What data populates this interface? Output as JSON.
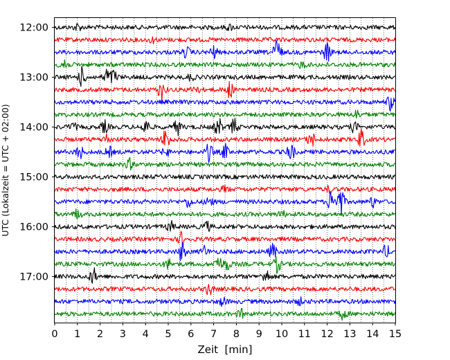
{
  "chart_data": {
    "type": "line",
    "title": "",
    "xlabel": "Zeit  [min]",
    "ylabel": "UTC (Lokalzeit = UTC + 02:00)",
    "xlim": [
      0,
      15
    ],
    "x_ticks": [
      0,
      1,
      2,
      3,
      4,
      5,
      6,
      7,
      8,
      9,
      10,
      11,
      12,
      13,
      14,
      15
    ],
    "y_tick_labels": [
      "12:00",
      "13:00",
      "14:00",
      "15:00",
      "16:00",
      "17:00"
    ],
    "row_interval_min": 15,
    "rows_start": "12:00",
    "grid": {
      "vertical_dotted": true,
      "horizontal": false
    },
    "trace_colors": [
      "#000000",
      "#ff0000",
      "#0000ff",
      "#008000"
    ],
    "rows": [
      {
        "time": "12:00",
        "color": "#000000",
        "events": [
          {
            "t": 1.0,
            "amp": 0.35
          },
          {
            "t": 7.7,
            "amp": 0.25
          }
        ]
      },
      {
        "time": "12:15",
        "color": "#ff0000",
        "events": [
          {
            "t": 4.3,
            "amp": 0.25
          }
        ]
      },
      {
        "time": "12:30",
        "color": "#0000ff",
        "events": [
          {
            "t": 5.8,
            "amp": 0.5
          },
          {
            "t": 7.0,
            "amp": 0.6
          },
          {
            "t": 9.8,
            "amp": 1.6
          },
          {
            "t": 12.0,
            "amp": 1.0
          }
        ]
      },
      {
        "time": "12:45",
        "color": "#008000",
        "events": [
          {
            "t": 0.4,
            "amp": 0.9
          },
          {
            "t": 10.9,
            "amp": 0.3
          }
        ]
      },
      {
        "time": "13:00",
        "color": "#000000",
        "events": [
          {
            "t": 1.2,
            "amp": 0.9
          },
          {
            "t": 2.3,
            "amp": 0.8
          },
          {
            "t": 2.6,
            "amp": 0.7
          },
          {
            "t": 6.0,
            "amp": 0.3
          }
        ]
      },
      {
        "time": "13:15",
        "color": "#ff0000",
        "events": [
          {
            "t": 4.7,
            "amp": 1.0
          },
          {
            "t": 6.2,
            "amp": 0.5
          },
          {
            "t": 7.7,
            "amp": 0.8
          }
        ]
      },
      {
        "time": "13:30",
        "color": "#0000ff",
        "events": [
          {
            "t": 14.8,
            "amp": 0.8
          }
        ]
      },
      {
        "time": "13:45",
        "color": "#008000",
        "events": [
          {
            "t": 13.3,
            "amp": 0.4
          }
        ]
      },
      {
        "time": "14:00",
        "color": "#000000",
        "events": [
          {
            "t": 0.8,
            "amp": 0.4
          },
          {
            "t": 2.2,
            "amp": 0.6
          },
          {
            "t": 4.0,
            "amp": 0.8
          },
          {
            "t": 5.4,
            "amp": 0.8
          },
          {
            "t": 7.2,
            "amp": 1.0
          },
          {
            "t": 7.9,
            "amp": 0.8
          },
          {
            "t": 13.2,
            "amp": 0.5
          }
        ]
      },
      {
        "time": "14:15",
        "color": "#ff0000",
        "events": [
          {
            "t": 2.3,
            "amp": 0.5
          },
          {
            "t": 4.9,
            "amp": 1.2
          },
          {
            "t": 11.3,
            "amp": 0.8
          },
          {
            "t": 13.5,
            "amp": 1.0
          }
        ]
      },
      {
        "time": "14:30",
        "color": "#0000ff",
        "events": [
          {
            "t": 1.1,
            "amp": 0.7
          },
          {
            "t": 2.4,
            "amp": 0.5
          },
          {
            "t": 4.9,
            "amp": 0.4
          },
          {
            "t": 6.8,
            "amp": 0.9
          },
          {
            "t": 7.5,
            "amp": 0.7
          },
          {
            "t": 10.4,
            "amp": 0.9
          }
        ]
      },
      {
        "time": "14:45",
        "color": "#008000",
        "events": [
          {
            "t": 3.3,
            "amp": 0.5
          }
        ]
      },
      {
        "time": "15:00",
        "color": "#000000",
        "events": []
      },
      {
        "time": "15:15",
        "color": "#ff0000",
        "events": [
          {
            "t": 7.5,
            "amp": 0.3
          },
          {
            "t": 12.1,
            "amp": 0.3
          }
        ]
      },
      {
        "time": "15:30",
        "color": "#0000ff",
        "events": [
          {
            "t": 5.9,
            "amp": 0.5
          },
          {
            "t": 6.8,
            "amp": 0.5
          },
          {
            "t": 12.2,
            "amp": 1.3
          },
          {
            "t": 12.6,
            "amp": 1.5
          },
          {
            "t": 14.0,
            "amp": 0.5
          }
        ]
      },
      {
        "time": "15:45",
        "color": "#008000",
        "events": [
          {
            "t": 1.0,
            "amp": 0.5
          },
          {
            "t": 10.0,
            "amp": 0.3
          }
        ]
      },
      {
        "time": "16:00",
        "color": "#000000",
        "events": [
          {
            "t": 5.1,
            "amp": 0.5
          },
          {
            "t": 6.7,
            "amp": 0.5
          }
        ]
      },
      {
        "time": "16:15",
        "color": "#ff0000",
        "events": [
          {
            "t": 5.6,
            "amp": 0.7
          }
        ]
      },
      {
        "time": "16:30",
        "color": "#0000ff",
        "events": [
          {
            "t": 5.6,
            "amp": 0.9
          },
          {
            "t": 6.6,
            "amp": 0.5
          },
          {
            "t": 9.6,
            "amp": 0.8
          },
          {
            "t": 14.6,
            "amp": 0.6
          }
        ]
      },
      {
        "time": "16:45",
        "color": "#008000",
        "events": [
          {
            "t": 5.0,
            "amp": 0.5
          },
          {
            "t": 7.2,
            "amp": 0.9
          },
          {
            "t": 7.6,
            "amp": 0.6
          },
          {
            "t": 9.8,
            "amp": 0.8
          }
        ]
      },
      {
        "time": "17:00",
        "color": "#000000",
        "events": [
          {
            "t": 1.7,
            "amp": 0.8
          },
          {
            "t": 9.3,
            "amp": 0.7
          }
        ]
      },
      {
        "time": "17:15",
        "color": "#ff0000",
        "events": [
          {
            "t": 6.8,
            "amp": 0.6
          }
        ]
      },
      {
        "time": "17:30",
        "color": "#0000ff",
        "events": [
          {
            "t": 7.4,
            "amp": 0.4
          },
          {
            "t": 10.8,
            "amp": 0.3
          }
        ]
      },
      {
        "time": "17:45",
        "color": "#008000",
        "events": [
          {
            "t": 8.2,
            "amp": 0.4
          },
          {
            "t": 12.7,
            "amp": 0.5
          }
        ]
      }
    ]
  }
}
